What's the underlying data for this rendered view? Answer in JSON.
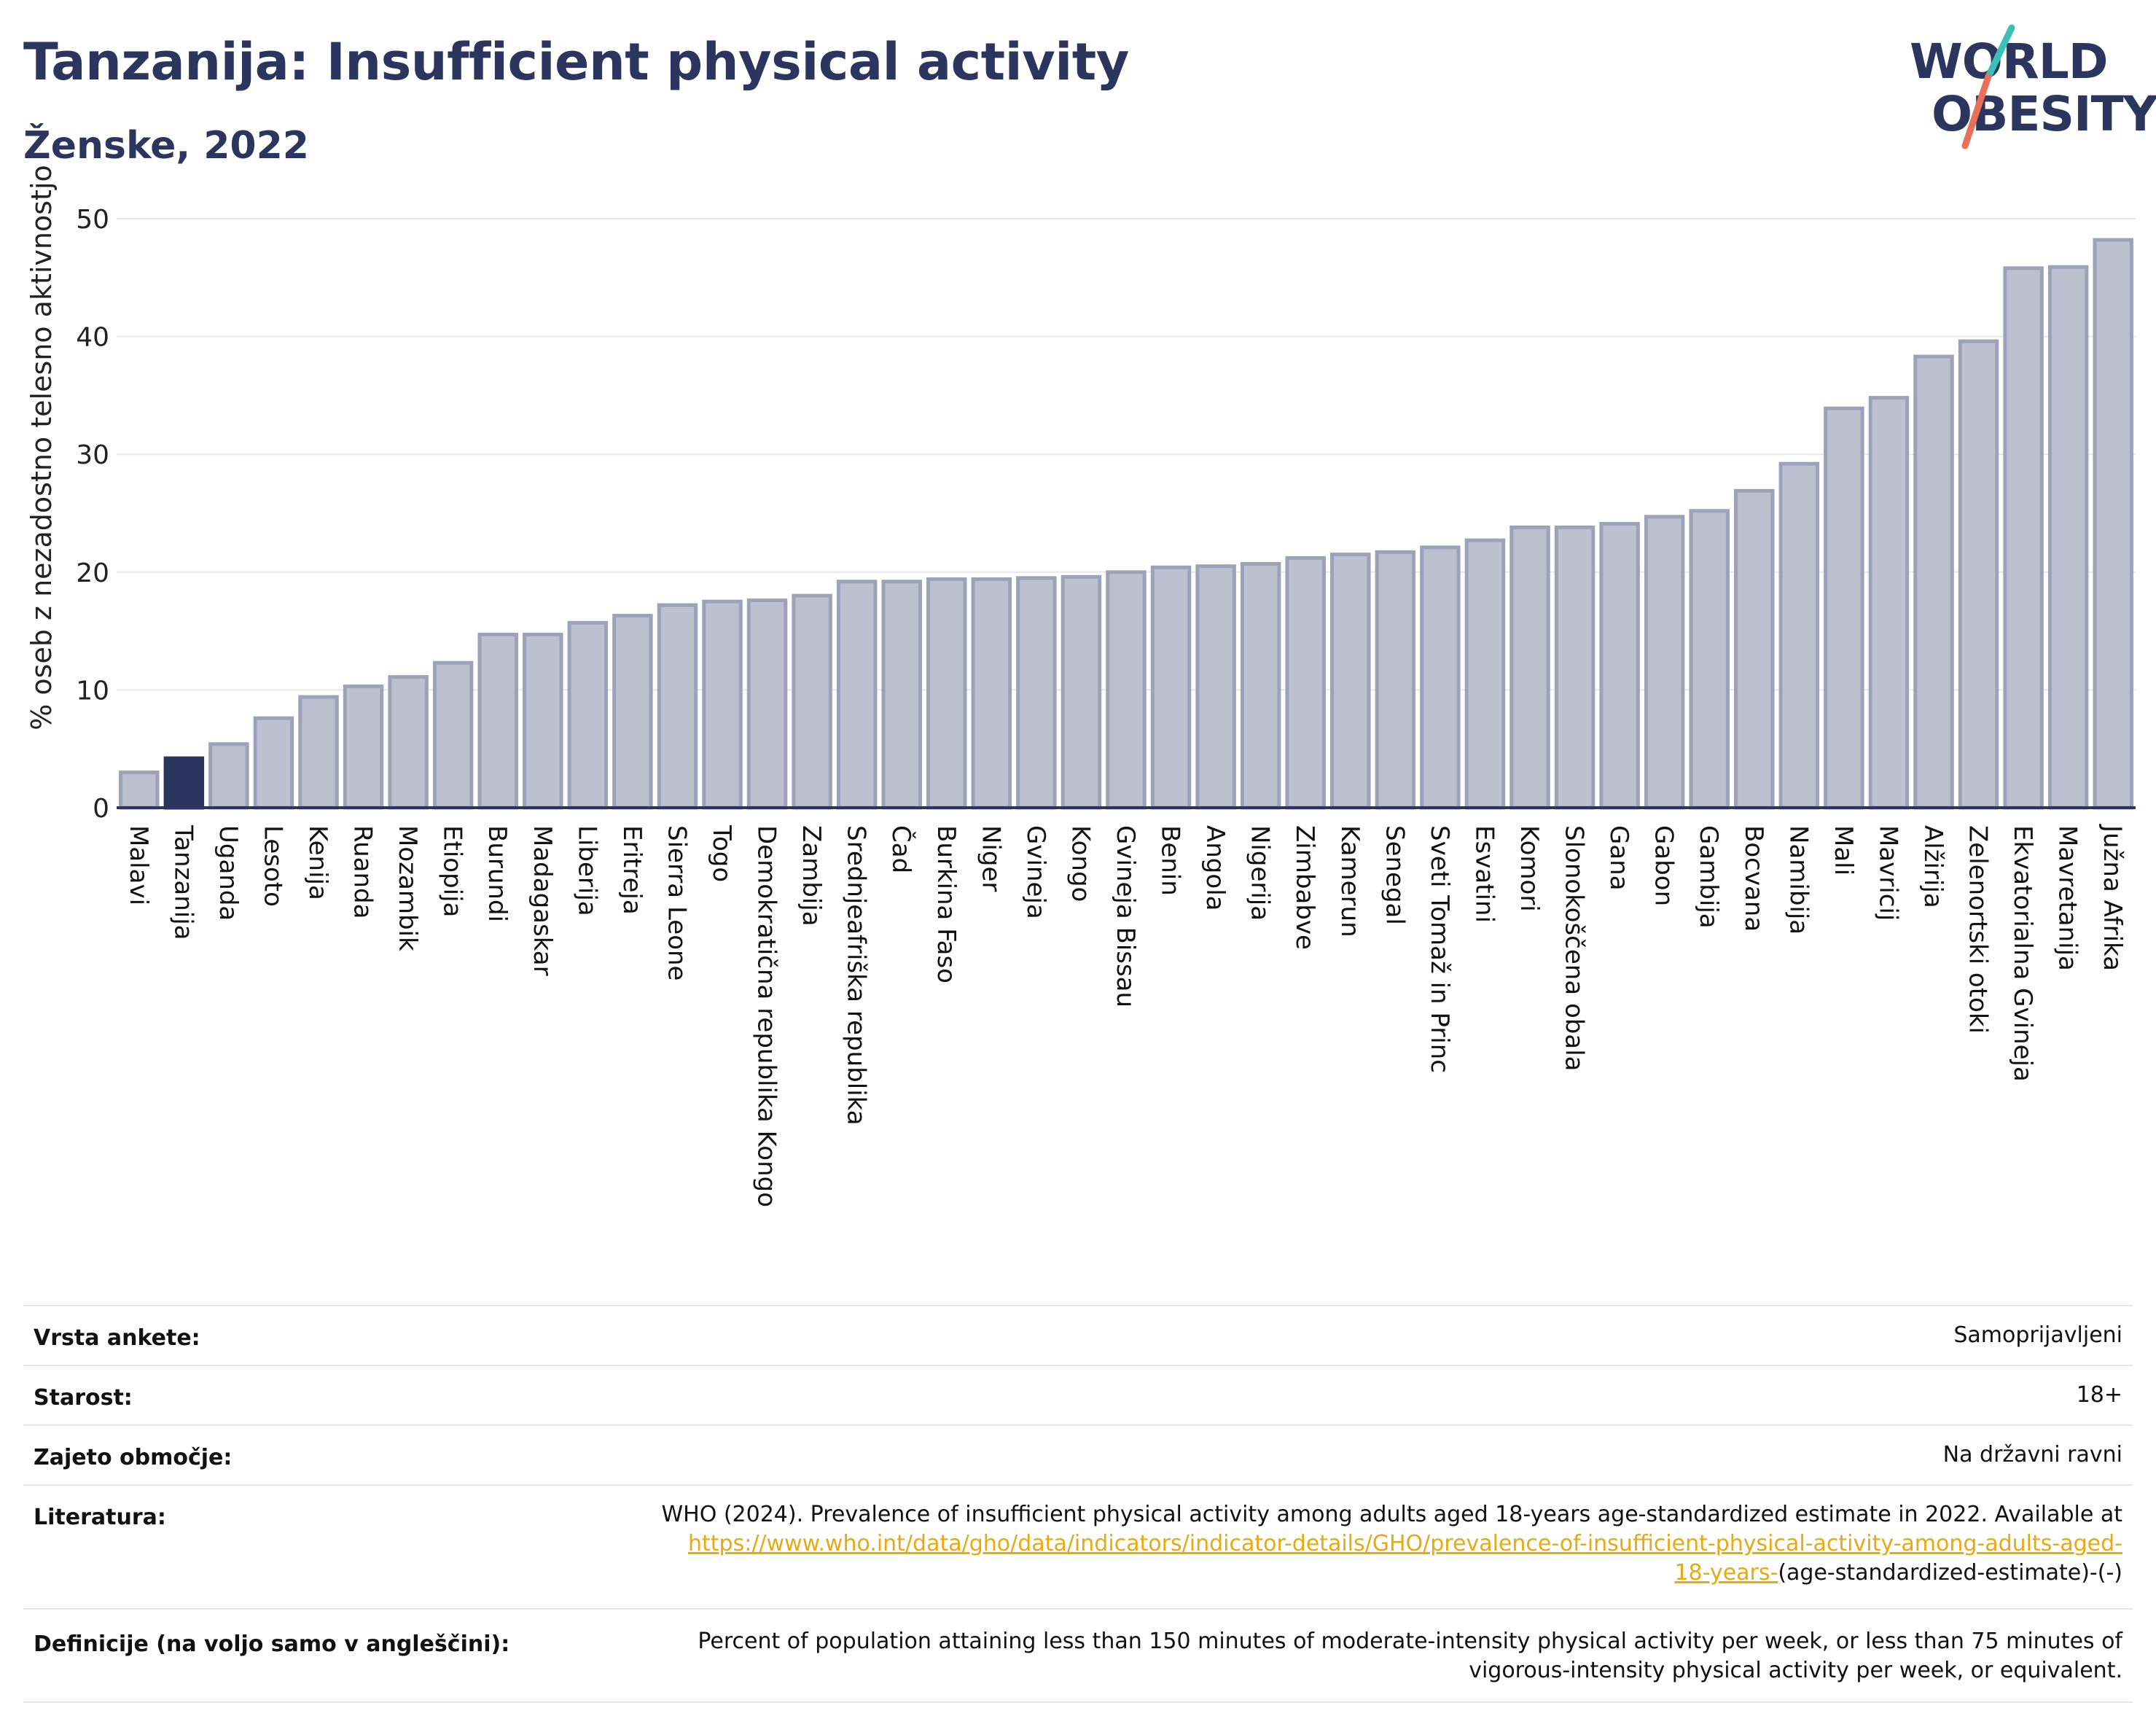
{
  "header": {
    "title": "Tanzanija: Insufficient physical activity",
    "subtitle": "Ženske, 2022"
  },
  "logo": {
    "line1": "WORLD",
    "line2": "OBESITY",
    "accent_teal": "#3bbfb8",
    "accent_red": "#e8705a"
  },
  "colors": {
    "bar": "#bcc0cf",
    "bar_border": "#9ca2b8",
    "highlight": "#2b355e",
    "axis": "#2b355e",
    "grid": "#e8e8e8"
  },
  "chart_data": {
    "type": "bar",
    "ylabel": "% oseb z nezadostno telesno aktivnostjo",
    "ylim": [
      0,
      50
    ],
    "yticks": [
      0,
      10,
      20,
      30,
      40,
      50
    ],
    "highlight": "Tanzanija",
    "categories": [
      "Malavi",
      "Tanzanija",
      "Uganda",
      "Lesoto",
      "Kenija",
      "Ruanda",
      "Mozambik",
      "Etiopija",
      "Burundi",
      "Madagaskar",
      "Liberija",
      "Eritreja",
      "Sierra Leone",
      "Togo",
      "Demokratična republika Kongo",
      "Zambija",
      "Srednjeafriška republika",
      "Čad",
      "Burkina Faso",
      "Niger",
      "Gvineja",
      "Kongo",
      "Gvineja Bissau",
      "Benin",
      "Angola",
      "Nigerija",
      "Zimbabve",
      "Kamerun",
      "Senegal",
      "Sveti Tomaž in Princ",
      "Esvatini",
      "Komori",
      "Slonokoščena obala",
      "Gana",
      "Gabon",
      "Gambija",
      "Bocvana",
      "Namibija",
      "Mali",
      "Mavricij",
      "Alžirija",
      "Zelenortski otoki",
      "Ekvatorialna Gvineja",
      "Mavretanija",
      "Južna Afrika"
    ],
    "values": [
      3.0,
      4.2,
      5.4,
      7.6,
      9.4,
      10.3,
      11.1,
      12.3,
      14.7,
      14.7,
      15.7,
      16.3,
      17.2,
      17.5,
      17.6,
      18.0,
      19.2,
      19.2,
      19.4,
      19.4,
      19.5,
      19.6,
      20.0,
      20.4,
      20.5,
      20.7,
      21.2,
      21.5,
      21.7,
      22.1,
      22.7,
      23.8,
      23.8,
      24.1,
      24.7,
      25.2,
      26.9,
      29.2,
      33.9,
      34.8,
      38.3,
      39.6,
      45.8,
      45.9,
      48.2
    ]
  },
  "meta": {
    "survey_label": "Vrsta ankete:",
    "survey_value": "Samoprijavljeni",
    "age_label": "Starost:",
    "age_value": "18+",
    "coverage_label": "Zajeto območje:",
    "coverage_value": "Na državni ravni",
    "literature_label": "Literatura:",
    "literature_text": "WHO (2024). Prevalence of insufficient physical activity among adults aged 18-years age-standardized estimate in 2022. Available at",
    "literature_link_1": "https://www.who.int/data/gho/data/indicators/indicator-details/GHO/prevalence-of-insufficient-physical-activity-among-adults-aged-",
    "literature_link_2": "18-years-",
    "literature_tail": "(age-standardized-estimate)-(-)",
    "definition_label": "Definicije (na voljo samo v angleščini):",
    "definition_line1": "Percent of population attaining less than 150 minutes of moderate-intensity physical activity per week, or less than 75 minutes of",
    "definition_line2": "vigorous-intensity physical activity per week, or equivalent."
  }
}
